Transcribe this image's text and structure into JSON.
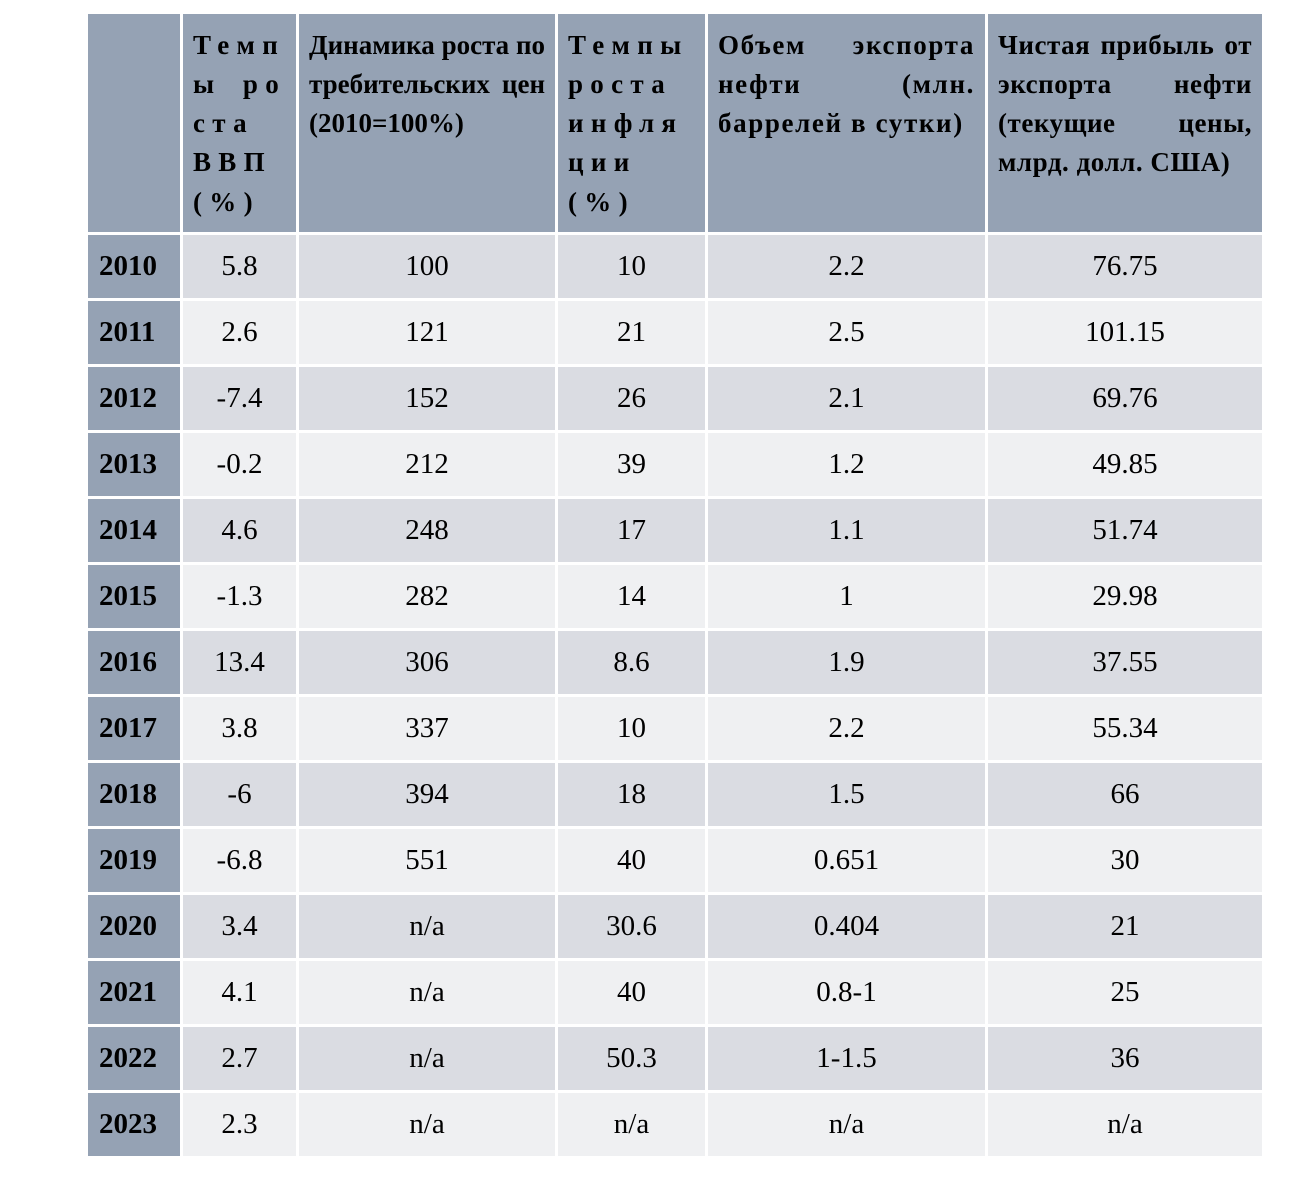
{
  "table": {
    "columns": [
      "",
      "Темпы роста ВВП (%)",
      "Динамика роста потребительских цен (2010=100%)",
      "Темпы роста инфляции (%)",
      "Объем экспорта нефти (млн. баррелей в сутки)",
      "Чистая прибыль от экспорта нефти (текущие цены, млрд. долл. США)"
    ],
    "rows": [
      {
        "year": "2010",
        "values": [
          "5.8",
          "100",
          "10",
          "2.2",
          "76.75"
        ]
      },
      {
        "year": "2011",
        "values": [
          "2.6",
          "121",
          "21",
          "2.5",
          "101.15"
        ]
      },
      {
        "year": "2012",
        "values": [
          "-7.4",
          "152",
          "26",
          "2.1",
          "69.76"
        ]
      },
      {
        "year": "2013",
        "values": [
          "-0.2",
          "212",
          "39",
          "1.2",
          "49.85"
        ]
      },
      {
        "year": "2014",
        "values": [
          "4.6",
          "248",
          "17",
          "1.1",
          "51.74"
        ]
      },
      {
        "year": "2015",
        "values": [
          "-1.3",
          "282",
          "14",
          "1",
          "29.98"
        ]
      },
      {
        "year": "2016",
        "values": [
          "13.4",
          "306",
          "8.6",
          "1.9",
          "37.55"
        ]
      },
      {
        "year": "2017",
        "values": [
          "3.8",
          "337",
          "10",
          "2.2",
          "55.34"
        ]
      },
      {
        "year": "2018",
        "values": [
          "-6",
          "394",
          "18",
          "1.5",
          "66"
        ]
      },
      {
        "year": "2019",
        "values": [
          "-6.8",
          "551",
          "40",
          "0.651",
          "30"
        ]
      },
      {
        "year": "2020",
        "values": [
          "3.4",
          "n/a",
          "30.6",
          "0.404",
          "21"
        ]
      },
      {
        "year": "2021",
        "values": [
          "4.1",
          "n/a",
          "40",
          "0.8-1",
          "25"
        ]
      },
      {
        "year": "2022",
        "values": [
          "2.7",
          "n/a",
          "50.3",
          "1-1.5",
          "36"
        ]
      },
      {
        "year": "2023",
        "values": [
          "2.3",
          "n/a",
          "n/a",
          "n/a",
          "n/a"
        ]
      }
    ],
    "colors": {
      "header_bg": "#95A2B4",
      "year_column_bg": "#95A2B4",
      "row_odd_bg": "#DADCE2",
      "row_even_bg": "#EFF0F2",
      "grid_gap": "#FFFFFF",
      "text": "#000000"
    }
  }
}
